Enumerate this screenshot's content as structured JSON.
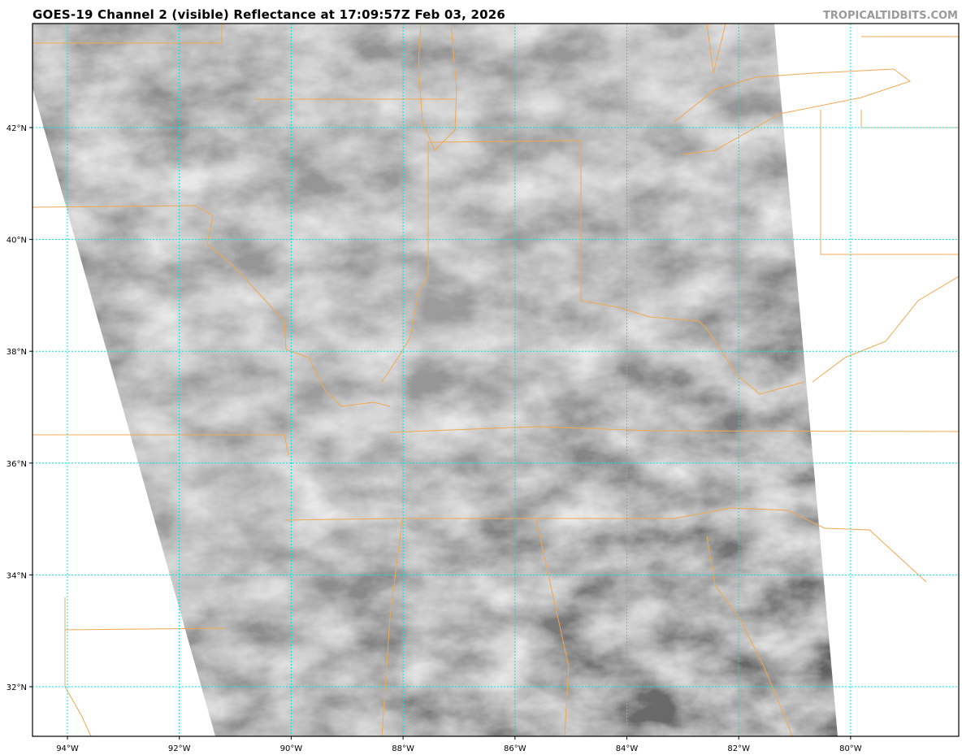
{
  "header": {
    "title": "GOES-19 Channel 2 (visible) Reflectance at 17:09:57Z Feb 03, 2026",
    "credit": "TROPICALTIDBITS.COM"
  },
  "map": {
    "projection": "lat-lon",
    "lon_ticks": [
      {
        "value": -94,
        "label": "94°W"
      },
      {
        "value": -92,
        "label": "92°W"
      },
      {
        "value": -90,
        "label": "90°W"
      },
      {
        "value": -88,
        "label": "88°W"
      },
      {
        "value": -86,
        "label": "86°W"
      },
      {
        "value": -84,
        "label": "84°W"
      },
      {
        "value": -82,
        "label": "82°W"
      },
      {
        "value": -80,
        "label": "80°W"
      }
    ],
    "lat_ticks": [
      {
        "value": 42,
        "label": "42°N"
      },
      {
        "value": 40,
        "label": "40°N"
      },
      {
        "value": 38,
        "label": "38°N"
      },
      {
        "value": 36,
        "label": "36°N"
      },
      {
        "value": 34,
        "label": "34°N"
      },
      {
        "value": 32,
        "label": "32°N"
      }
    ],
    "colors": {
      "gridline": "#00e5e5",
      "borders": "#f0a850",
      "imagery": "#8c8c8c"
    }
  }
}
